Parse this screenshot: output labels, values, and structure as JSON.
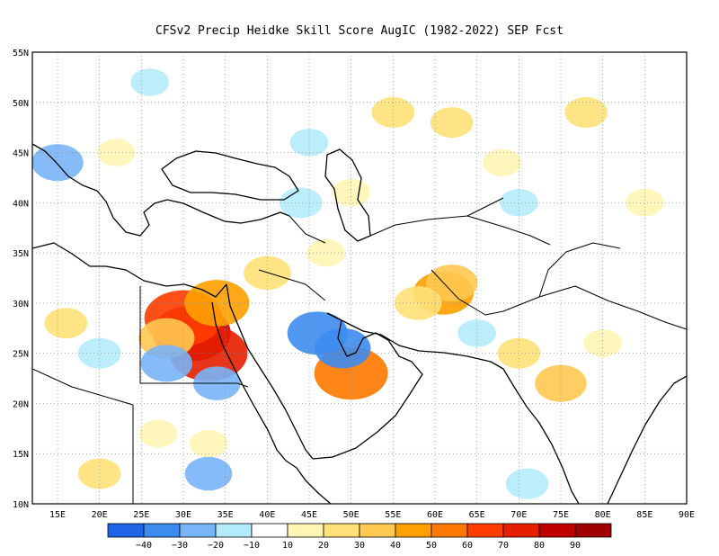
{
  "title": "CFSv2 Precip Heidke Skill Score AugIC (1982-2022) SEP Fcst",
  "map": {
    "lon_range": [
      12,
      90
    ],
    "lat_range": [
      10,
      55
    ],
    "lon_ticks": [
      {
        "lon": 15,
        "label": "15E"
      },
      {
        "lon": 20,
        "label": "20E"
      },
      {
        "lon": 25,
        "label": "25E"
      },
      {
        "lon": 30,
        "label": "30E"
      },
      {
        "lon": 35,
        "label": "35E"
      },
      {
        "lon": 40,
        "label": "40E"
      },
      {
        "lon": 45,
        "label": "45E"
      },
      {
        "lon": 50,
        "label": "50E"
      },
      {
        "lon": 55,
        "label": "55E"
      },
      {
        "lon": 60,
        "label": "60E"
      },
      {
        "lon": 65,
        "label": "65E"
      },
      {
        "lon": 70,
        "label": "70E"
      },
      {
        "lon": 75,
        "label": "75E"
      },
      {
        "lon": 80,
        "label": "80E"
      },
      {
        "lon": 85,
        "label": "85E"
      },
      {
        "lon": 90,
        "label": "90E"
      }
    ],
    "lat_ticks": [
      {
        "lat": 10,
        "label": "10N"
      },
      {
        "lat": 15,
        "label": "15N"
      },
      {
        "lat": 20,
        "label": "20N"
      },
      {
        "lat": 25,
        "label": "25N"
      },
      {
        "lat": 30,
        "label": "30N"
      },
      {
        "lat": 35,
        "label": "35N"
      },
      {
        "lat": 40,
        "label": "40N"
      },
      {
        "lat": 45,
        "label": "45N"
      },
      {
        "lat": 50,
        "label": "50N"
      },
      {
        "lat": 55,
        "label": "55N"
      }
    ],
    "grid": true
  },
  "colorbar": {
    "colors": [
      "#1e64e6",
      "#3c8cf0",
      "#78b4f8",
      "#b4ebfa",
      "#ffffff",
      "#fff5b4",
      "#ffe178",
      "#ffc850",
      "#ffa000",
      "#ff7800",
      "#ff3c00",
      "#e61e00",
      "#c00000",
      "#a00000"
    ],
    "labels": [
      "−40",
      "−30",
      "−20",
      "−10",
      "10",
      "20",
      "30",
      "40",
      "50",
      "60",
      "70",
      "80",
      "90"
    ]
  },
  "skill_patches": [
    {
      "lon": 31,
      "lat": 27,
      "value": 85
    },
    {
      "lon": 33,
      "lat": 25,
      "value": 70
    },
    {
      "lon": 30,
      "lat": 28.5,
      "value": 60
    },
    {
      "lon": 34,
      "lat": 30,
      "value": 45
    },
    {
      "lon": 28,
      "lat": 26.5,
      "value": 35
    },
    {
      "lon": 50,
      "lat": 23,
      "value": 55
    },
    {
      "lon": 61,
      "lat": 31,
      "value": 40
    },
    {
      "lon": 62,
      "lat": 32,
      "value": 30
    },
    {
      "lon": 58,
      "lat": 30,
      "value": 25
    },
    {
      "lon": 75,
      "lat": 22,
      "value": 30
    },
    {
      "lon": 40,
      "lat": 33,
      "value": 25
    },
    {
      "lon": 62,
      "lat": 48,
      "value": 20
    },
    {
      "lon": 78,
      "lat": 49,
      "value": 20
    },
    {
      "lon": 55,
      "lat": 49,
      "value": 20
    },
    {
      "lon": 68,
      "lat": 44,
      "value": 15
    },
    {
      "lon": 85,
      "lat": 40,
      "value": 15
    },
    {
      "lon": 20,
      "lat": 13,
      "value": 20
    },
    {
      "lon": 27,
      "lat": 17,
      "value": 15
    },
    {
      "lon": 33,
      "lat": 16,
      "value": 15
    },
    {
      "lon": 47,
      "lat": 35,
      "value": 15
    },
    {
      "lon": 70,
      "lat": 25,
      "value": 20
    },
    {
      "lon": 80,
      "lat": 26,
      "value": 15
    },
    {
      "lon": 16,
      "lat": 28,
      "value": 20
    },
    {
      "lon": 22,
      "lat": 45,
      "value": 15
    },
    {
      "lon": 50,
      "lat": 41,
      "value": 15
    },
    {
      "lon": 46,
      "lat": 27,
      "value": -40
    },
    {
      "lon": 49,
      "lat": 25.5,
      "value": -35
    },
    {
      "lon": 28,
      "lat": 24,
      "value": -30
    },
    {
      "lon": 34,
      "lat": 22,
      "value": -25
    },
    {
      "lon": 15,
      "lat": 44,
      "value": -30
    },
    {
      "lon": 20,
      "lat": 25,
      "value": -20
    },
    {
      "lon": 44,
      "lat": 40,
      "value": -20
    },
    {
      "lon": 45,
      "lat": 46,
      "value": -15
    },
    {
      "lon": 65,
      "lat": 27,
      "value": -15
    },
    {
      "lon": 71,
      "lat": 12,
      "value": -20
    },
    {
      "lon": 33,
      "lat": 13,
      "value": -25
    },
    {
      "lon": 26,
      "lat": 52,
      "value": -15
    },
    {
      "lon": 70,
      "lat": 40,
      "value": -15
    }
  ]
}
